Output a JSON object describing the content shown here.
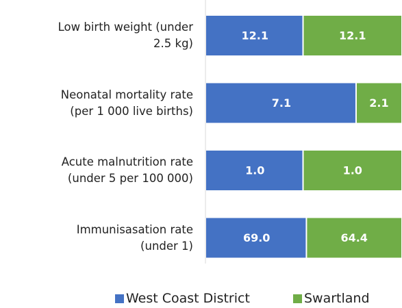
{
  "chart_data": {
    "type": "bar_stacked_percent_horizontal",
    "categories": [
      "Low birth weight (under\n2.5 kg)",
      "Neonatal mortality rate\n(per 1 000 live births)",
      "Acute malnutrition rate\n(under 5 per 100 000)",
      "Immunisasation rate\n(under 1)"
    ],
    "series": [
      {
        "name": "West Coast District",
        "color": "#4472c4",
        "values": [
          12.1,
          7.1,
          1.0,
          69.0
        ],
        "value_labels": [
          "12.1",
          "7.1",
          "1.0",
          "69.0"
        ]
      },
      {
        "name": "Swartland",
        "color": "#70ad47",
        "values": [
          12.1,
          2.1,
          1.0,
          64.4
        ],
        "value_labels": [
          "12.1",
          "2.1",
          "1.0",
          "64.4"
        ]
      }
    ],
    "legend": "bottom"
  }
}
